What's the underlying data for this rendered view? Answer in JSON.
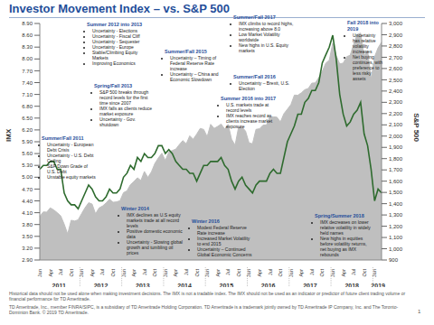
{
  "chart_data": {
    "type": "line",
    "title": "Investor Movement Index – vs. S&P 500",
    "categories": [
      "Jan",
      null,
      null,
      "Apr",
      null,
      null,
      "Jul",
      null,
      null,
      "Oct",
      null,
      null,
      "Jan",
      null,
      null,
      "Apr",
      null,
      null,
      "Jul",
      null,
      null,
      "Oct",
      null,
      null,
      "Jan",
      null,
      null,
      "Apr",
      null,
      null,
      "Jul",
      null,
      null,
      "Oct",
      null,
      null,
      "Jan",
      null,
      null,
      "Apr",
      null,
      null,
      "Jul",
      null,
      null,
      "Oct",
      null,
      null,
      "Jan",
      null,
      null,
      "Apr",
      null,
      null,
      "Jul",
      null,
      null,
      "Oct",
      null,
      null,
      "Jan",
      null,
      null,
      "Apr",
      null,
      null,
      "Jul",
      null,
      null,
      "Oct",
      null,
      null,
      "Jan",
      null,
      null,
      "Apr",
      null,
      null,
      "Jul",
      null,
      null,
      "Oct",
      null,
      null,
      "Jan",
      null,
      null,
      "Apr",
      null,
      null,
      "Jul",
      null,
      null,
      "Oct",
      null,
      null,
      "Jan",
      null,
      null
    ],
    "year_labels": [
      "2011",
      "2012",
      "2013",
      "2014",
      "2015",
      "2016",
      "2017",
      "2018",
      "2019"
    ],
    "series": [
      {
        "name": "IMX",
        "type": "line",
        "color": "#2e6b2e",
        "values": [
          5.2,
          5.3,
          5.3,
          5.4,
          5.4,
          5.2,
          5.2,
          4.6,
          4.4,
          4.3,
          4.3,
          4.2,
          4.4,
          4.6,
          4.8,
          4.7,
          4.5,
          4.4,
          4.4,
          4.5,
          4.7,
          4.6,
          4.6,
          4.7,
          5.0,
          5.1,
          5.3,
          5.2,
          5.5,
          5.4,
          5.6,
          5.5,
          5.5,
          5.6,
          5.8,
          5.8,
          5.6,
          5.7,
          5.6,
          5.4,
          5.3,
          5.2,
          5.2,
          5.1,
          5.1,
          4.9,
          5.1,
          5.3,
          5.3,
          5.4,
          5.4,
          5.4,
          5.5,
          5.3,
          5.2,
          4.9,
          4.7,
          4.9,
          5.0,
          4.8,
          4.7,
          4.6,
          4.8,
          4.9,
          4.9,
          4.9,
          5.1,
          5.2,
          5.1,
          5.1,
          5.5,
          5.9,
          6.1,
          6.3,
          6.6,
          6.6,
          6.9,
          7.0,
          7.2,
          7.2,
          7.4,
          7.9,
          8.1,
          8.3,
          8.6,
          8.0,
          7.1,
          6.6,
          6.3,
          6.4,
          6.6,
          6.7,
          6.9,
          6.1,
          5.8,
          5.2,
          4.4,
          4.7,
          4.6
        ]
      },
      {
        "name": "S&P 500",
        "type": "area",
        "axis": "y2",
        "color": "#bfbfbf",
        "values": [
          1286,
          1327,
          1325,
          1363,
          1345,
          1320,
          1292,
          1218,
          1131,
          1253,
          1246,
          1257,
          1312,
          1365,
          1408,
          1397,
          1310,
          1362,
          1379,
          1406,
          1440,
          1412,
          1416,
          1426,
          1498,
          1514,
          1569,
          1597,
          1630,
          1606,
          1686,
          1633,
          1682,
          1757,
          1806,
          1848,
          1783,
          1859,
          1872,
          1884,
          1924,
          1960,
          1931,
          2003,
          1972,
          2018,
          2068,
          2059,
          1995,
          2105,
          2068,
          2086,
          2107,
          2063,
          2104,
          1972,
          1920,
          2079,
          2080,
          2044,
          1940,
          1932,
          2060,
          2065,
          2097,
          2099,
          2174,
          2171,
          2168,
          2126,
          2199,
          2239,
          2279,
          2364,
          2363,
          2384,
          2412,
          2423,
          2470,
          2472,
          2519,
          2575,
          2648,
          2674,
          2824,
          2714,
          2641,
          2648,
          2705,
          2718,
          2816,
          2902,
          2914,
          2712,
          2760,
          2507,
          2704,
          2784,
          2834
        ]
      }
    ],
    "ylim": [
      2.9,
      8.9
    ],
    "yticks": [
      {
        "value": 2.9,
        "label": "2.90"
      },
      {
        "value": 3.2,
        "label": "3.20"
      },
      {
        "value": 3.5,
        "label": "3.50"
      },
      {
        "value": 3.8,
        "label": "3.80"
      },
      {
        "value": 4.1,
        "label": "4.10"
      },
      {
        "value": 4.4,
        "label": "4.40"
      },
      {
        "value": 4.7,
        "label": "4.70"
      },
      {
        "value": 5.0,
        "label": "5.00"
      },
      {
        "value": 5.3,
        "label": "5.30"
      },
      {
        "value": 5.6,
        "label": "5.60"
      },
      {
        "value": 5.9,
        "label": "5.90"
      },
      {
        "value": 6.2,
        "label": "6.20"
      },
      {
        "value": 6.5,
        "label": "6.50"
      },
      {
        "value": 6.8,
        "label": "6.80"
      },
      {
        "value": 7.1,
        "label": "7.10"
      },
      {
        "value": 7.4,
        "label": "7.40"
      },
      {
        "value": 7.7,
        "label": "7.70"
      },
      {
        "value": 8.0,
        "label": "8.00"
      },
      {
        "value": 8.3,
        "label": "8.30"
      },
      {
        "value": 8.6,
        "label": "8.60"
      },
      {
        "value": 8.9,
        "label": "8.90"
      }
    ],
    "y2lim": [
      900,
      3000
    ],
    "y2ticks": [
      900,
      {
        "value": 1000,
        "label": "1,000"
      },
      {
        "value": 1100,
        "label": "1,100"
      },
      {
        "value": 1200,
        "label": "1,200"
      },
      {
        "value": 1300,
        "label": "1,300"
      },
      {
        "value": 1400,
        "label": "1,400"
      },
      {
        "value": 1500,
        "label": "1,500"
      },
      {
        "value": 1600,
        "label": "1,600"
      },
      {
        "value": 1700,
        "label": "1,700"
      },
      {
        "value": 1800,
        "label": "1,800"
      },
      {
        "value": 1900,
        "label": "1,900"
      },
      {
        "value": 2000,
        "label": "2,000"
      },
      {
        "value": 2100,
        "label": "2,100"
      },
      {
        "value": 2200,
        "label": "2,200"
      },
      {
        "value": 2300,
        "label": "2,300"
      },
      {
        "value": 2400,
        "label": "2,400"
      },
      {
        "value": 2500,
        "label": "2,500"
      },
      {
        "value": 2600,
        "label": "2,600"
      },
      {
        "value": 2700,
        "label": "2,700"
      },
      {
        "value": 2800,
        "label": "2,800"
      },
      {
        "value": 2900,
        "label": "2,900"
      },
      {
        "value": 3000,
        "label": "3,000"
      }
    ],
    "grid": false,
    "annotations": [
      {
        "title": "Summer/Fall 2011",
        "items": [
          "Uncertainty - European Debt Crisis",
          "Uncertainty - U.S. Debt Ceiling",
          "S&P Down Grade of U.S. Debt",
          "Unstable equity markets"
        ]
      },
      {
        "title": "Summer 2012 into 2013",
        "items": [
          "Uncertainty - Elections",
          "Uncertainty - Fiscal Cliff",
          "Uncertainty - Sequester",
          "Uncertainty - Europe",
          "Stable/Climbing Equity Markets",
          "Improving Economics"
        ]
      },
      {
        "title": "Spring/Fall 2013",
        "items": [
          "S&P 500 breaks through record levels for the first time since 2007",
          "IMX falls as clients reduce market exposure",
          "Uncertainty - Gov. shutdown"
        ]
      },
      {
        "title": "Summer/Fall 2015",
        "items": [
          "Uncertainty – Timing of Federal Reserve Rate increase",
          "Uncertainty – China and Economic Slowdown"
        ]
      },
      {
        "title": "Winter 2014",
        "items": [
          "IMX declines as U.S equity markets trade at all record levels",
          "Positive domestic economic data",
          "Uncertainty - Slowing global growth and tumbling oil prices"
        ]
      },
      {
        "title": "Winter 2016",
        "items": [
          "Modest Federal Reserve Rate increase",
          "Increased Market Volatility to end 2015",
          "Uncertainty – Continued Global Economic Concerns"
        ]
      },
      {
        "title": "Summer 2016 into 2017",
        "items": [
          "U.S. markets trade at record levels",
          "IMX reaches record as clients increase market exposure"
        ]
      },
      {
        "title": "Summer/Fall 2017",
        "items": [
          "IMX climbs to record highs, increasing above 8.0",
          "Low Market Volatility worldwide",
          "New highs in U.S. Equity markets"
        ]
      },
      {
        "title": "Summer/Fall 2016",
        "items": [
          "Uncertainty – Brexit, U.S. Election"
        ]
      },
      {
        "title": "Fall 2018 into 2019",
        "items": [
          "Uncertainty has relative volatility increases",
          "Net buying continues, with preference to less risky assets"
        ]
      },
      {
        "title": "Spring/Summer 2018",
        "items": [
          "IMX decreases on lower relative volatility in widely held names",
          "New highs in equities before volatility returns, net buying as IMX rebounds"
        ]
      }
    ],
    "footer": [
      "Historical data should not be used alone when making investment decisions. The IMX is not a tradable index. The IMX should not be used as an indicator or predictor of future client trading volume or financial performance for TD Ameritrade.",
      "TD Ameritrade, Inc., member FINRA/SIPC, is a subsidiary of TD Ameritrade Holding Corporation. TD Ameritrade is a trademark jointly owned by TD Ameritrade IP Company, Inc. and The Toronto-Dominion Bank. © 2019 TD Ameritrade."
    ],
    "page_number": "1"
  }
}
